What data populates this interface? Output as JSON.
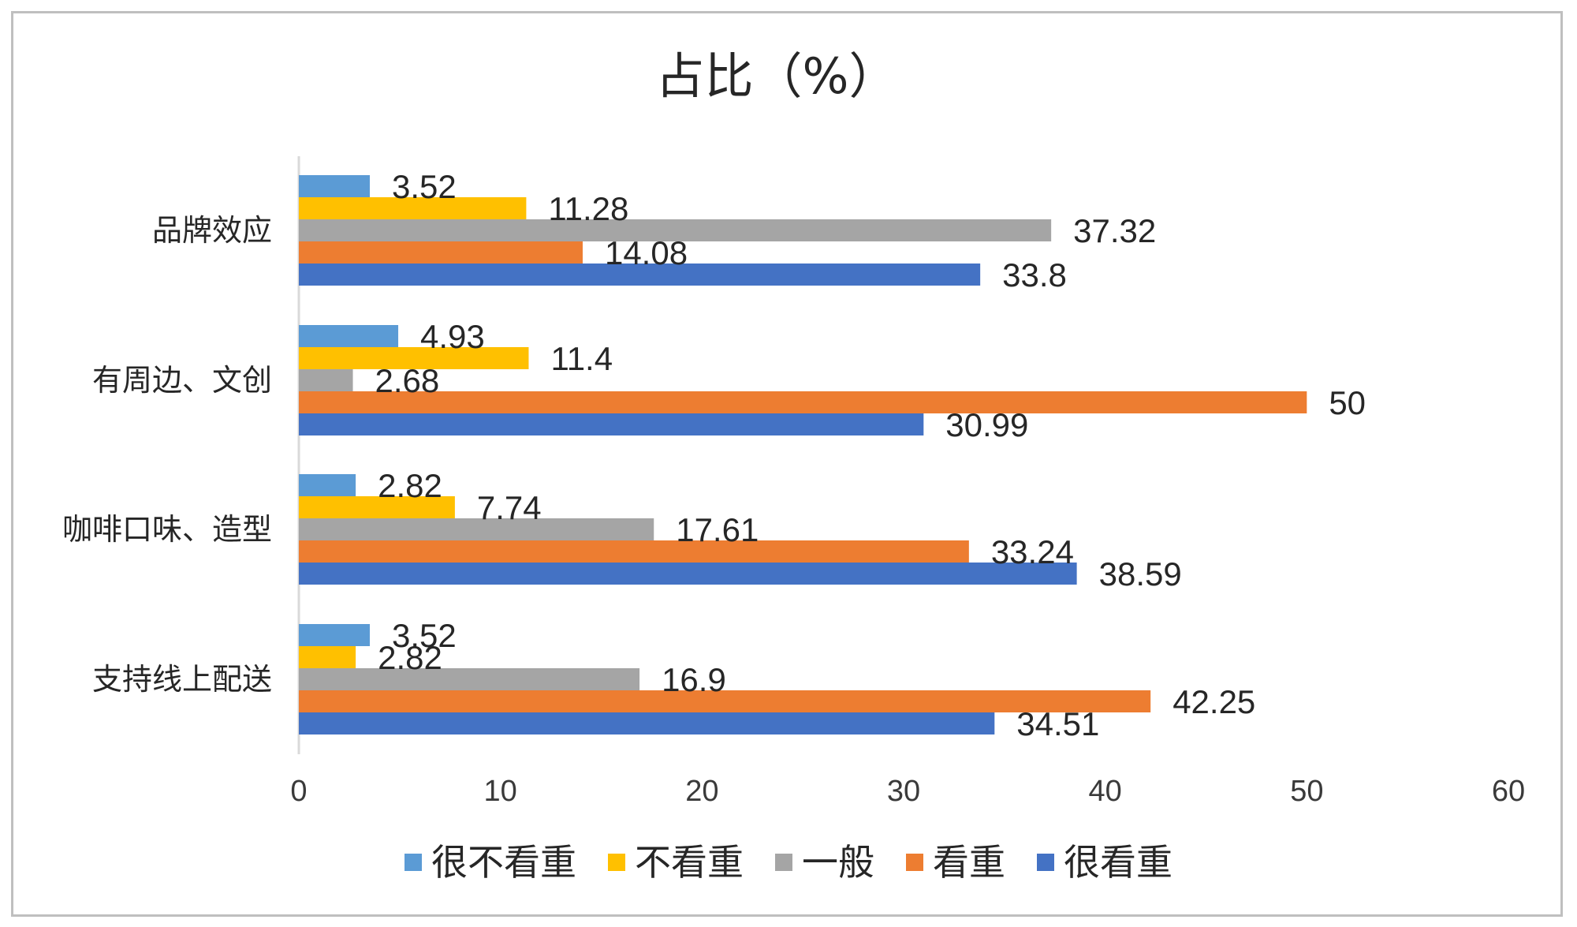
{
  "chart_data": {
    "type": "bar",
    "orientation": "horizontal",
    "title": "占比（%）",
    "categories": [
      "品牌效应",
      "有周边、文创",
      "咖啡口味、造型",
      "支持线上配送"
    ],
    "series": [
      {
        "name": "很不看重",
        "color": "#5b9bd5",
        "values": [
          3.52,
          4.93,
          2.82,
          3.52
        ]
      },
      {
        "name": "不看重",
        "color": "#ffc000",
        "values": [
          11.28,
          11.4,
          7.74,
          2.82
        ]
      },
      {
        "name": "一般",
        "color": "#a5a5a5",
        "values": [
          37.32,
          2.68,
          17.61,
          16.9
        ]
      },
      {
        "name": "看重",
        "color": "#ed7d31",
        "values": [
          14.08,
          50,
          33.24,
          42.25
        ]
      },
      {
        "name": "很看重",
        "color": "#4472c4",
        "values": [
          33.8,
          30.99,
          38.59,
          34.51
        ]
      }
    ],
    "data_labels": [
      [
        "3.52",
        "4.93",
        "2.82",
        "3.52"
      ],
      [
        "11.28",
        "11.4",
        "7.74",
        "2.82"
      ],
      [
        "37.32",
        "2.68",
        "17.61",
        "16.9"
      ],
      [
        "14.08",
        "50",
        "33.24",
        "42.25"
      ],
      [
        "33.8",
        "30.99",
        "38.59",
        "34.51"
      ]
    ],
    "xlim": [
      0,
      60
    ],
    "xticks": [
      "0",
      "10",
      "20",
      "30",
      "40",
      "50",
      "60"
    ],
    "legend_position": "bottom",
    "grid": false
  }
}
